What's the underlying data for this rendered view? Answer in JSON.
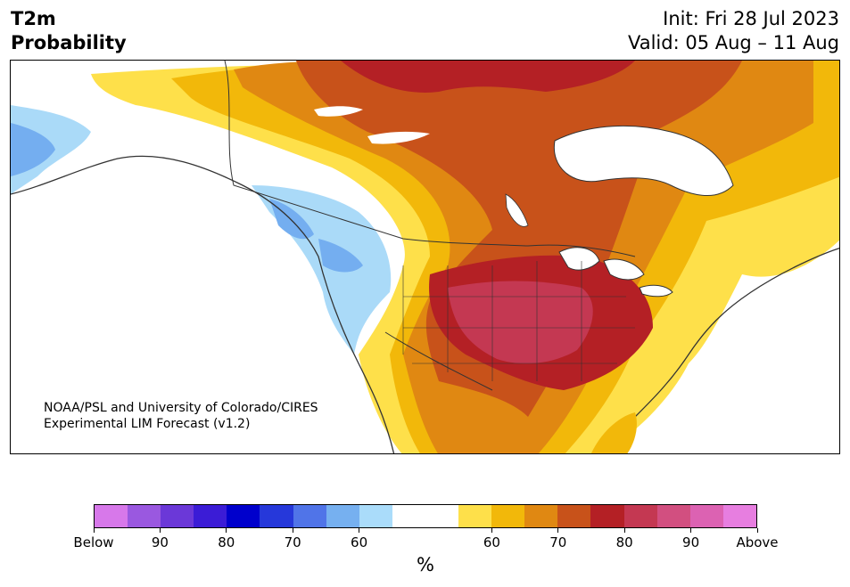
{
  "header": {
    "title_line1": "T2m",
    "title_line2": "Probability",
    "init": "Init: Fri 28 Jul 2023",
    "valid": "Valid: 05 Aug – 11 Aug"
  },
  "map": {
    "region": "North America (CONUS, Canada, Alaska, Mexico)",
    "credit_line1": "NOAA/PSL and University of Colorado/CIRES",
    "credit_line2": "Experimental LIM Forecast (v1.2)",
    "colors": {
      "below_60": "#aadaf8",
      "below_70": "#74aef0",
      "above_60": "#fee04a",
      "above_70": "#f2b80a",
      "above_75": "#e08812",
      "above_80": "#c8521a",
      "above_85": "#b42025",
      "above_90": "#c43852",
      "border": "#333333",
      "lakes": "#ffffff"
    }
  },
  "colorbar": {
    "colors": [
      "#d778ea",
      "#9a58e0",
      "#6b38d8",
      "#3b1cd6",
      "#0000cc",
      "#2638da",
      "#5074e8",
      "#76b0f0",
      "#aadcfa",
      "#ffffff",
      "#ffffff",
      "#fee04a",
      "#f2b80a",
      "#e08812",
      "#c8521a",
      "#b42025",
      "#c43852",
      "#d24f80",
      "#dc62b2",
      "#e77ee0"
    ],
    "ticks": [
      {
        "label": "Below",
        "frac": 0.0
      },
      {
        "label": "90",
        "frac": 0.1
      },
      {
        "label": "80",
        "frac": 0.2
      },
      {
        "label": "70",
        "frac": 0.3
      },
      {
        "label": "60",
        "frac": 0.4
      },
      {
        "label": "60",
        "frac": 0.6
      },
      {
        "label": "70",
        "frac": 0.7
      },
      {
        "label": "80",
        "frac": 0.8
      },
      {
        "label": "90",
        "frac": 0.9
      },
      {
        "label": "Above",
        "frac": 1.0
      }
    ],
    "unit": "%"
  }
}
